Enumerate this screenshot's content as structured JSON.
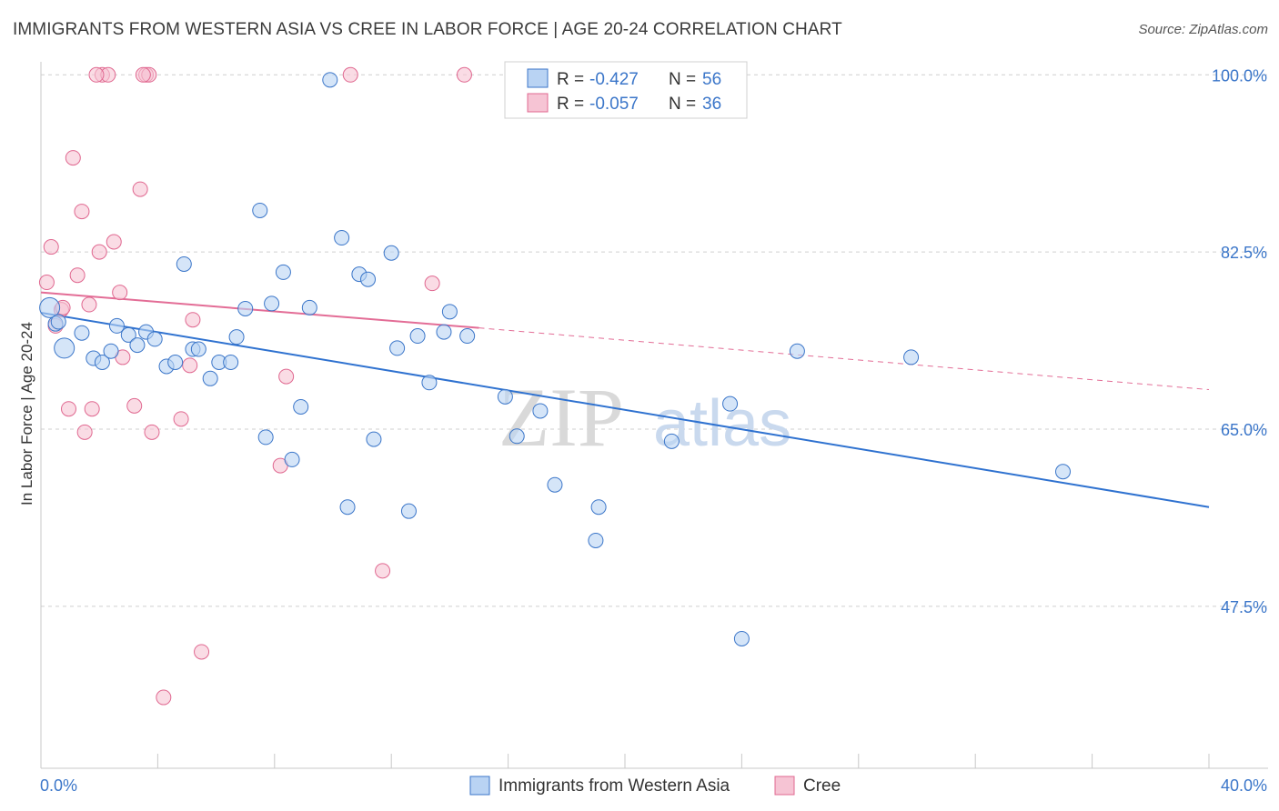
{
  "title": "IMMIGRANTS FROM WESTERN ASIA VS CREE IN LABOR FORCE | AGE 20-24 CORRELATION CHART",
  "source": "Source: ZipAtlas.com",
  "watermark": {
    "zip": "ZIP",
    "atlas": "atlas"
  },
  "colors": {
    "blue": "#3b76c9",
    "blue_fill": "#b9d3f3",
    "blue_line": "#2f72d0",
    "pink": "#e06890",
    "pink_fill": "#f6c4d4",
    "pink_line": "#e36d96",
    "grid": "#cfcfcf"
  },
  "legend_top": {
    "rows": [
      {
        "r_label": "R =",
        "r_value": "-0.427",
        "n_label": "N =",
        "n_value": "56",
        "series": "blue"
      },
      {
        "r_label": "R =",
        "r_value": "-0.057",
        "n_label": "N =",
        "n_value": "36",
        "series": "pink"
      }
    ]
  },
  "chart_data": {
    "type": "scatter",
    "title": "IMMIGRANTS FROM WESTERN ASIA VS CREE IN LABOR FORCE | AGE 20-24 CORRELATION CHART",
    "xlabel": "",
    "ylabel": "In Labor Force | Age 20-24",
    "xlim": [
      0,
      40
    ],
    "ylim": [
      31.5,
      102
    ],
    "x_tick_labels": [
      "0.0%",
      "40.0%"
    ],
    "y_ticks": [
      47.5,
      65.0,
      82.5,
      100.0
    ],
    "y_tick_labels": [
      "47.5%",
      "65.0%",
      "82.5%",
      "100.0%"
    ],
    "grid": true,
    "legend_position": "bottom-center",
    "series": [
      {
        "name": "Immigrants from Western Asia",
        "color": "blue",
        "points": [
          [
            0.3,
            77.0
          ],
          [
            0.5,
            75.4
          ],
          [
            0.8,
            73.0
          ],
          [
            1.4,
            74.5
          ],
          [
            1.8,
            72.0
          ],
          [
            2.1,
            71.6
          ],
          [
            2.4,
            72.7
          ],
          [
            2.6,
            75.2
          ],
          [
            3.0,
            74.3
          ],
          [
            3.3,
            73.3
          ],
          [
            3.6,
            74.6
          ],
          [
            3.9,
            73.9
          ],
          [
            4.3,
            71.2
          ],
          [
            4.6,
            71.6
          ],
          [
            4.9,
            81.3
          ],
          [
            5.2,
            72.9
          ],
          [
            5.4,
            72.9
          ],
          [
            5.8,
            70.0
          ],
          [
            6.1,
            71.6
          ],
          [
            6.5,
            71.6
          ],
          [
            6.7,
            74.1
          ],
          [
            7.0,
            76.9
          ],
          [
            7.5,
            86.6
          ],
          [
            7.7,
            64.2
          ],
          [
            7.9,
            77.4
          ],
          [
            8.3,
            80.5
          ],
          [
            8.6,
            62.0
          ],
          [
            8.9,
            67.2
          ],
          [
            9.2,
            77.0
          ],
          [
            9.9,
            99.5
          ],
          [
            10.3,
            83.9
          ],
          [
            10.5,
            57.3
          ],
          [
            10.9,
            80.3
          ],
          [
            11.2,
            79.8
          ],
          [
            11.4,
            64.0
          ],
          [
            12.0,
            82.4
          ],
          [
            12.2,
            73.0
          ],
          [
            12.6,
            56.9
          ],
          [
            12.9,
            74.2
          ],
          [
            13.3,
            69.6
          ],
          [
            13.8,
            74.6
          ],
          [
            14.0,
            76.6
          ],
          [
            14.6,
            74.2
          ],
          [
            15.9,
            68.2
          ],
          [
            16.3,
            64.3
          ],
          [
            17.1,
            66.8
          ],
          [
            17.6,
            59.5
          ],
          [
            19.1,
            57.3
          ],
          [
            19.0,
            54.0
          ],
          [
            21.6,
            63.8
          ],
          [
            23.6,
            67.5
          ],
          [
            24.0,
            44.3
          ],
          [
            25.9,
            72.7
          ],
          [
            29.8,
            72.1
          ],
          [
            35.0,
            60.8
          ],
          [
            0.6,
            75.6
          ]
        ],
        "trend": {
          "x": [
            0,
            40
          ],
          "y": [
            76.5,
            57.3
          ]
        }
      },
      {
        "name": "Cree",
        "color": "pink",
        "points": [
          [
            0.2,
            79.5
          ],
          [
            0.35,
            83.0
          ],
          [
            0.5,
            75.2
          ],
          [
            0.7,
            76.8
          ],
          [
            0.75,
            77.0
          ],
          [
            0.95,
            67.0
          ],
          [
            1.1,
            91.8
          ],
          [
            1.25,
            80.2
          ],
          [
            1.4,
            86.5
          ],
          [
            1.5,
            64.7
          ],
          [
            1.65,
            77.3
          ],
          [
            1.75,
            67.0
          ],
          [
            2.0,
            82.5
          ],
          [
            2.1,
            100.0
          ],
          [
            2.3,
            100.0
          ],
          [
            2.5,
            83.5
          ],
          [
            2.7,
            78.5
          ],
          [
            2.8,
            72.1
          ],
          [
            3.2,
            67.3
          ],
          [
            3.4,
            88.7
          ],
          [
            3.6,
            100.0
          ],
          [
            3.7,
            100.0
          ],
          [
            3.8,
            64.7
          ],
          [
            4.2,
            38.5
          ],
          [
            4.8,
            66.0
          ],
          [
            5.1,
            71.3
          ],
          [
            5.2,
            75.8
          ],
          [
            5.5,
            43.0
          ],
          [
            8.2,
            61.4
          ],
          [
            8.4,
            70.2
          ],
          [
            10.6,
            100.0
          ],
          [
            11.7,
            51.0
          ],
          [
            13.4,
            79.4
          ],
          [
            14.5,
            100.0
          ],
          [
            3.5,
            100.0
          ],
          [
            1.9,
            100.0
          ]
        ],
        "trend": {
          "x": [
            0,
            15
          ],
          "y": [
            78.5,
            75.0
          ]
        },
        "trend_dashed": {
          "x": [
            15,
            40
          ],
          "y": [
            75.0,
            68.9
          ]
        }
      }
    ]
  },
  "legend_bottom": {
    "items": [
      {
        "label": "Immigrants from Western Asia",
        "series": "blue"
      },
      {
        "label": "Cree",
        "series": "pink"
      }
    ]
  }
}
